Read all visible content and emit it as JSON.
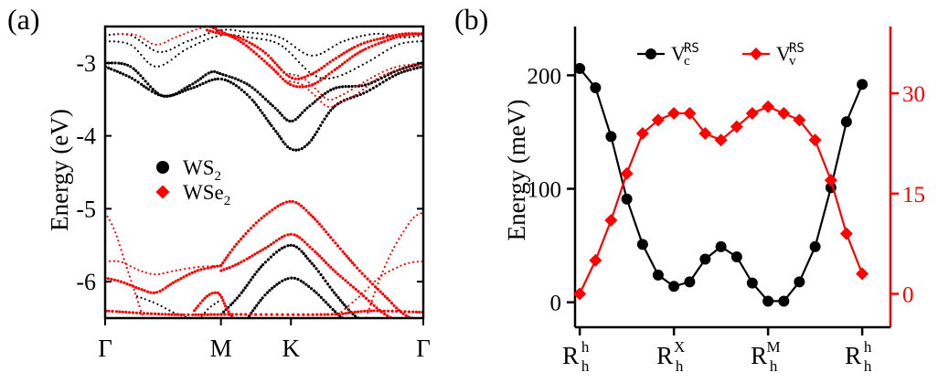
{
  "colors": {
    "ws2": "#000000",
    "wse2": "#ff0000",
    "axis": "#000000",
    "right_axis": "#ff0000"
  },
  "chart_data": [
    {
      "id": "a",
      "panel_label": "(a)",
      "type": "scatter",
      "title": "",
      "xlabel": "",
      "ylabel": "Energy (eV)",
      "xlim": [
        0,
        1
      ],
      "ylim": [
        -6.5,
        -2.5
      ],
      "x_ticks": [
        {
          "pos": 0,
          "label": "Γ"
        },
        {
          "pos": 0.364,
          "label": "M"
        },
        {
          "pos": 0.584,
          "label": "K"
        },
        {
          "pos": 1,
          "label": "Γ"
        }
      ],
      "y_ticks": [
        -3,
        -4,
        -5,
        -6
      ],
      "y_tick_labels": [
        "-3",
        "-4",
        "-5",
        "-6"
      ],
      "legend": {
        "placement": "center-left",
        "entries": [
          {
            "base": "WS",
            "sub": "2",
            "marker": "circle",
            "color": "#000000"
          },
          {
            "base": "WSe",
            "sub": "2",
            "marker": "diamond",
            "color": "#ff0000"
          }
        ]
      },
      "series": [
        {
          "name": "WS2 conduction band 1",
          "color": "#000000",
          "style": "thick",
          "x": [
            0,
            0.08,
            0.18,
            0.27,
            0.364,
            0.45,
            0.53,
            0.584,
            0.64,
            0.72,
            0.82,
            0.92,
            1
          ],
          "y": [
            -3.05,
            -3.2,
            -3.45,
            -3.35,
            -3.22,
            -3.45,
            -3.9,
            -4.18,
            -4.1,
            -3.6,
            -3.4,
            -3.15,
            -3.05
          ]
        },
        {
          "name": "WS2 conduction band 2",
          "color": "#000000",
          "style": "thick",
          "x": [
            0,
            0.08,
            0.18,
            0.27,
            0.33,
            0.364,
            0.45,
            0.53,
            0.584,
            0.64,
            0.72,
            0.82,
            0.92,
            1
          ],
          "y": [
            -3.0,
            -3.05,
            -3.45,
            -3.3,
            -3.13,
            -3.15,
            -3.3,
            -3.6,
            -3.8,
            -3.6,
            -3.35,
            -3.3,
            -3.1,
            -3.0
          ]
        },
        {
          "name": "WS2 conduction band 3",
          "color": "#000000",
          "style": "thin",
          "x": [
            0,
            0.08,
            0.16,
            0.26,
            0.364,
            0.45,
            0.55,
            0.65,
            0.72,
            0.82,
            0.92,
            1
          ],
          "y": [
            -2.7,
            -2.75,
            -3.05,
            -2.8,
            -2.62,
            -2.65,
            -2.75,
            -3.15,
            -3.2,
            -3.0,
            -2.75,
            -2.7
          ]
        },
        {
          "name": "WS2 conduction band 4",
          "color": "#000000",
          "style": "thin",
          "x": [
            0,
            0.08,
            0.17,
            0.26,
            0.364,
            0.45,
            0.55,
            0.65,
            0.75,
            0.85,
            0.93,
            1
          ],
          "y": [
            -2.62,
            -2.62,
            -2.85,
            -2.7,
            -2.55,
            -2.58,
            -2.65,
            -2.9,
            -2.7,
            -2.6,
            -2.65,
            -2.62
          ]
        },
        {
          "name": "WS2 valence band 1",
          "color": "#000000",
          "style": "thick",
          "x": [
            0.364,
            0.42,
            0.5,
            0.584,
            0.65,
            0.72,
            0.78,
            0.82
          ],
          "y": [
            -6.45,
            -6.2,
            -5.75,
            -5.5,
            -5.75,
            -6.15,
            -6.45,
            -6.55
          ]
        },
        {
          "name": "WS2 valence band 2",
          "color": "#000000",
          "style": "thick",
          "x": [
            0.44,
            0.51,
            0.584,
            0.65,
            0.72,
            0.76
          ],
          "y": [
            -6.55,
            -6.15,
            -5.95,
            -6.1,
            -6.4,
            -6.55
          ]
        },
        {
          "name": "WS2 valence band 3",
          "color": "#000000",
          "style": "thin",
          "x": [
            0.1,
            0.16,
            0.23,
            0.29,
            0.33,
            0.364
          ],
          "y": [
            -6.2,
            -6.3,
            -6.45,
            -6.5,
            -6.35,
            -6.25
          ]
        },
        {
          "name": "WSe2 conduction band 1",
          "color": "#ff0000",
          "style": "thick",
          "x": [
            0.32,
            0.364,
            0.42,
            0.5,
            0.584,
            0.65,
            0.72,
            0.8,
            0.88,
            0.94,
            1
          ],
          "y": [
            -2.55,
            -2.6,
            -2.65,
            -2.85,
            -3.2,
            -3.15,
            -2.95,
            -2.75,
            -2.65,
            -2.6,
            -2.6
          ]
        },
        {
          "name": "WSe2 conduction band 2",
          "color": "#ff0000",
          "style": "thick",
          "x": [
            0.33,
            0.38,
            0.44,
            0.52,
            0.584,
            0.65,
            0.72,
            0.8,
            0.88,
            0.94,
            1
          ],
          "y": [
            -2.5,
            -2.6,
            -2.75,
            -3.05,
            -3.3,
            -3.3,
            -3.1,
            -2.85,
            -2.7,
            -2.62,
            -2.6
          ]
        },
        {
          "name": "WSe2 conduction band 3",
          "color": "#ff0000",
          "style": "thin",
          "x": [
            0.58,
            0.62,
            0.66,
            0.7,
            0.74,
            0.8,
            0.86,
            0.92,
            1
          ],
          "y": [
            -3.15,
            -3.2,
            -3.35,
            -3.5,
            -3.45,
            -3.3,
            -3.15,
            -3.05,
            -3.0
          ]
        },
        {
          "name": "WSe2 conduction band 4",
          "color": "#ff0000",
          "style": "thin",
          "x": [
            0.58,
            0.62,
            0.66,
            0.7,
            0.74,
            0.8,
            0.86,
            0.92,
            1
          ],
          "y": [
            -3.25,
            -3.3,
            -3.45,
            -3.6,
            -3.55,
            -3.4,
            -3.2,
            -3.1,
            -3.02
          ]
        },
        {
          "name": "WSe2 conduction band 5",
          "color": "#ff0000",
          "style": "thin",
          "x": [
            0.04,
            0.1,
            0.16,
            0.22,
            0.28,
            0.32
          ],
          "y": [
            -2.6,
            -2.62,
            -2.75,
            -2.65,
            -2.55,
            -2.5
          ]
        },
        {
          "name": "WSe2 valence band 1",
          "color": "#ff0000",
          "style": "thick",
          "x": [
            0.364,
            0.42,
            0.5,
            0.584,
            0.65,
            0.72,
            0.8,
            0.88,
            0.94,
            1
          ],
          "y": [
            -5.78,
            -5.45,
            -5.1,
            -4.9,
            -5.1,
            -5.45,
            -5.85,
            -6.2,
            -6.45,
            -6.55
          ]
        },
        {
          "name": "WSe2 valence band 2",
          "color": "#ff0000",
          "style": "thick",
          "x": [
            0.364,
            0.42,
            0.5,
            0.584,
            0.65,
            0.72,
            0.8,
            0.88,
            0.94,
            1
          ],
          "y": [
            -5.85,
            -5.75,
            -5.55,
            -5.35,
            -5.55,
            -5.85,
            -6.15,
            -6.45,
            -6.55,
            -6.6
          ]
        },
        {
          "name": "WSe2 valence band 3",
          "color": "#ff0000",
          "style": "thick",
          "x": [
            0,
            0.05,
            0.11,
            0.16,
            0.22,
            0.29,
            0.364
          ],
          "y": [
            -5.95,
            -6.0,
            -6.1,
            -6.15,
            -6.0,
            -5.85,
            -5.78
          ]
        },
        {
          "name": "WSe2 valence band 4",
          "color": "#ff0000",
          "style": "thin",
          "x": [
            0,
            0.05,
            0.11,
            0.16,
            0.22,
            0.29,
            0.364
          ],
          "y": [
            -5.72,
            -5.73,
            -5.85,
            -5.9,
            -5.85,
            -5.8,
            -5.78
          ]
        },
        {
          "name": "WSe2 valence band 5",
          "color": "#ff0000",
          "style": "thin",
          "x": [
            0,
            0.03,
            0.06,
            0.09,
            0.12
          ],
          "y": [
            -5.05,
            -5.3,
            -5.7,
            -6.1,
            -6.5
          ]
        },
        {
          "name": "WSe2 valence band 6",
          "color": "#ff0000",
          "style": "thin",
          "x": [
            0.82,
            0.86,
            0.9,
            0.94,
            0.97,
            1
          ],
          "y": [
            -6.5,
            -6.0,
            -5.6,
            -5.3,
            -5.12,
            -5.05
          ]
        },
        {
          "name": "WSe2 valence band 7",
          "color": "#ff0000",
          "style": "thin",
          "x": [
            0.72,
            0.8,
            0.86,
            0.92,
            0.96,
            1
          ],
          "y": [
            -6.5,
            -6.2,
            -5.95,
            -5.8,
            -5.74,
            -5.72
          ]
        },
        {
          "name": "WSe2 valence band 8",
          "color": "#ff0000",
          "style": "thick",
          "x": [
            0.28,
            0.32,
            0.35,
            0.364,
            0.38,
            0.4
          ],
          "y": [
            -6.4,
            -6.2,
            -6.15,
            -6.2,
            -6.35,
            -6.5
          ]
        },
        {
          "name": "WSe2 valence band 9",
          "color": "#ff0000",
          "style": "thick",
          "x": [
            0,
            0.2,
            0.4,
            0.7,
            0.78,
            0.85,
            1
          ],
          "y": [
            -6.4,
            -6.45,
            -6.45,
            -6.45,
            -6.42,
            -6.4,
            -6.42
          ]
        }
      ]
    },
    {
      "id": "b",
      "panel_label": "(b)",
      "type": "line",
      "title": "",
      "xlabel": "",
      "ylabel": "Energy (meV)",
      "xlim": [
        -0.2,
        13.2
      ],
      "ylim": [
        -22,
        243
      ],
      "y_ticks": [
        0,
        100,
        200
      ],
      "y_tick_labels": [
        "0",
        "100",
        "200"
      ],
      "y2label": "",
      "y2lim": [
        -5,
        40
      ],
      "y2_ticks": [
        0,
        15,
        30
      ],
      "y2_tick_labels": [
        "0",
        "15",
        "30"
      ],
      "x_ticks": [
        {
          "pos": 0,
          "base": "R",
          "sub": "h",
          "sup": "h"
        },
        {
          "pos": 4,
          "base": "R",
          "sub": "h",
          "sup": "X"
        },
        {
          "pos": 8,
          "base": "R",
          "sub": "h",
          "sup": "M"
        },
        {
          "pos": 12,
          "base": "R",
          "sub": "h",
          "sup": "h"
        }
      ],
      "legend": {
        "placement": "top-center",
        "entries": [
          {
            "base": "V",
            "sub": "c",
            "sup": "RS",
            "marker": "circle",
            "color": "#000000"
          },
          {
            "base": "V",
            "sub": "v",
            "sup": "RS",
            "marker": "diamond",
            "color": "#ff0000"
          }
        ]
      },
      "series": [
        {
          "name": "Vc_RS",
          "axis": "left",
          "color": "#000000",
          "marker": "circle",
          "x": [
            0,
            0.67,
            1.33,
            2,
            2.67,
            3.33,
            4,
            4.67,
            5.33,
            6,
            6.67,
            7.33,
            8,
            8.67,
            9.33,
            10,
            10.67,
            11.33,
            12
          ],
          "y": [
            206,
            189,
            146,
            91,
            51,
            24,
            14,
            18,
            38,
            49,
            40,
            17,
            1,
            1,
            18,
            49,
            101,
            159,
            192
          ]
        },
        {
          "name": "Vv_RS",
          "axis": "right",
          "color": "#ff0000",
          "marker": "diamond",
          "x": [
            0,
            0.67,
            1.33,
            2,
            2.67,
            3.33,
            4,
            4.67,
            5.33,
            6,
            6.67,
            7.33,
            8,
            8.67,
            9.33,
            10,
            10.67,
            11.33,
            12
          ],
          "y": [
            0,
            5,
            11,
            18,
            24,
            26,
            27,
            27,
            24,
            23,
            25,
            27,
            28,
            27,
            26,
            23,
            17,
            9,
            3
          ]
        }
      ]
    }
  ]
}
